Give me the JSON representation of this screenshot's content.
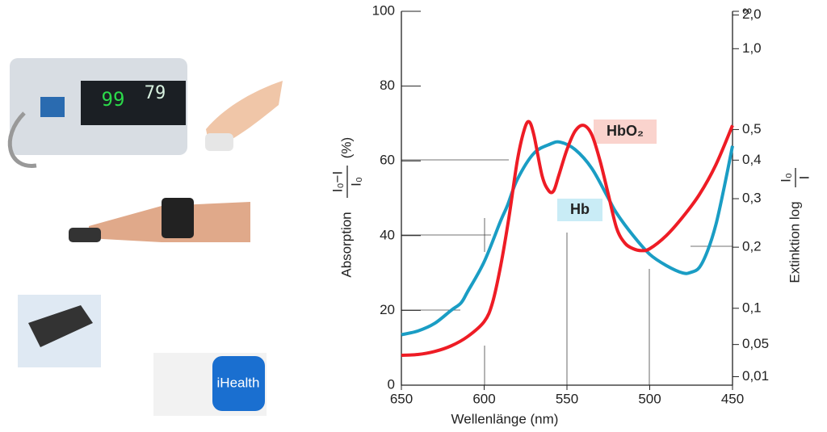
{
  "photos": {
    "monitor_readings": [
      "99",
      "79"
    ],
    "app_label": "iHealth"
  },
  "chart_data": {
    "type": "line",
    "xlabel": "Wellenlänge (nm)",
    "ylabel": {
      "word": "Absorption",
      "numerator": "I₀−I",
      "denominator": "I₀",
      "unit": "(%)"
    },
    "y2label": {
      "word": "Extinktion log",
      "numerator": "I₀",
      "denominator": "I"
    },
    "xlim": [
      650,
      450
    ],
    "xticks": [
      650,
      600,
      550,
      500,
      450
    ],
    "ylim": [
      0,
      100
    ],
    "yticks": [
      0,
      20,
      40,
      60,
      80,
      100
    ],
    "y2scale": "extinction",
    "y2ticks": [
      {
        "value": null,
        "label": "∞"
      },
      {
        "value": 2,
        "label": "2,0"
      },
      {
        "value": 1,
        "label": "1,0"
      },
      {
        "value": 0.5,
        "label": "0,5"
      },
      {
        "value": 0.4,
        "label": "0,4"
      },
      {
        "value": 0.3,
        "label": "0,3"
      },
      {
        "value": 0.2,
        "label": "0,2"
      },
      {
        "value": 0.1,
        "label": "0,1"
      },
      {
        "value": 0.05,
        "label": "0,05"
      },
      {
        "value": 0.01,
        "label": "0,01"
      }
    ],
    "series": [
      {
        "name": "Hb",
        "color": "#1a9dc4",
        "x": [
          650,
          640,
          630,
          620,
          614,
          610,
          600,
          590,
          586,
          580,
          570,
          560,
          554,
          545,
          535,
          525,
          520,
          510,
          500,
          490,
          480,
          475,
          470,
          465,
          460,
          455,
          450
        ],
        "values": [
          13.5,
          14.5,
          16.5,
          20,
          22,
          25,
          33,
          44,
          48,
          55,
          62,
          64.5,
          65,
          63,
          58,
          50,
          46,
          40,
          35,
          32,
          30,
          30.2,
          31.5,
          36,
          43,
          53,
          64
        ]
      },
      {
        "name": "HbO₂",
        "color": "#ee1c25",
        "x": [
          650,
          640,
          630,
          620,
          610,
          600,
          595,
          590,
          585,
          580,
          576,
          573,
          570,
          565,
          561,
          558,
          555,
          550,
          545,
          540,
          535,
          530,
          525,
          520,
          515,
          510,
          505,
          500,
          490,
          480,
          470,
          460,
          450
        ],
        "values": [
          8,
          8.2,
          9,
          10.5,
          13,
          17,
          22,
          32,
          45,
          60,
          68,
          70.5,
          67,
          56,
          52,
          52,
          56,
          63,
          68,
          69.5,
          67,
          60,
          51,
          42,
          38,
          36.5,
          36,
          36.5,
          40,
          45,
          51,
          59,
          69.5
        ]
      }
    ]
  }
}
